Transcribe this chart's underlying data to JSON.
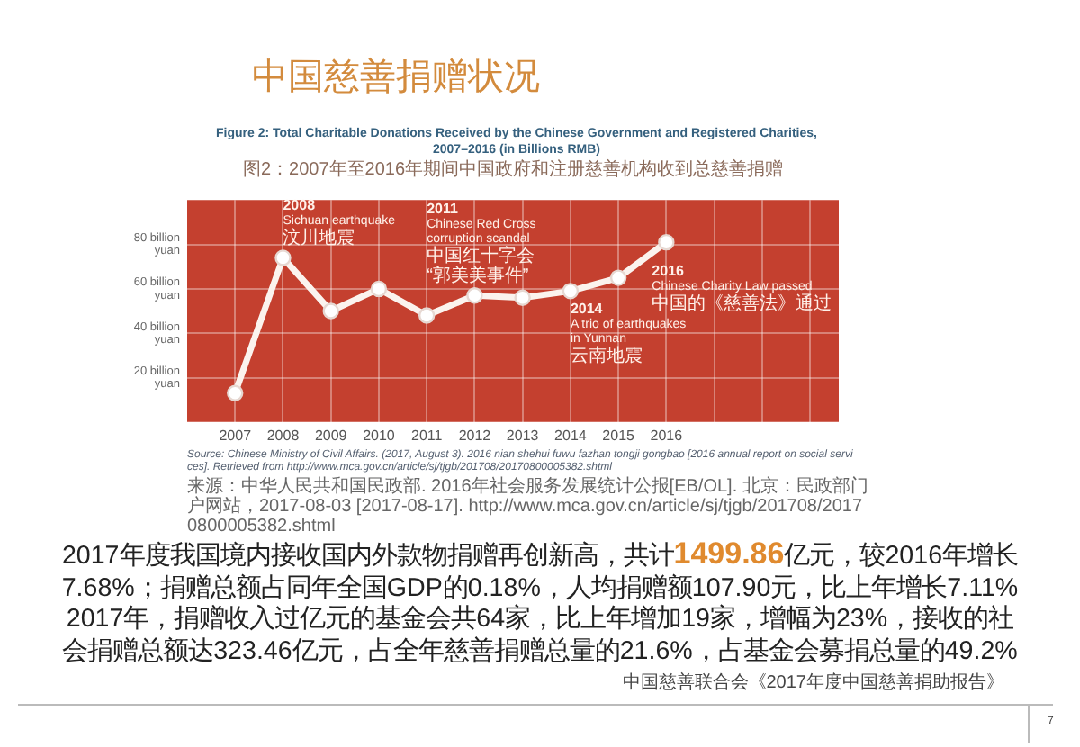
{
  "chart_data": {
    "type": "line",
    "title": "Figure 2: Total Charitable Donations Received by the Chinese Government and Registered Charities, 2007–2016 (in Billions RMB)",
    "subtitle": "图2：2007年至2016年期间中国政府和注册慈善机构收到总慈善捐赠",
    "x": [
      2007,
      2008,
      2009,
      2010,
      2011,
      2012,
      2013,
      2014,
      2015,
      2016
    ],
    "series": [
      {
        "color": "#fbf3ee",
        "values": [
          13,
          74,
          50,
          60,
          48,
          57,
          56,
          59,
          65,
          81
        ]
      }
    ],
    "xlim": [
      2006,
      2019.6
    ],
    "xticks": [
      2007,
      2008,
      2009,
      2010,
      2011,
      2012,
      2013,
      2014,
      2015,
      2016,
      {
        "value": 2017,
        "label": null
      },
      {
        "value": 2018,
        "label": null
      },
      {
        "value": 2019,
        "label": null
      }
    ],
    "ylim": [
      0,
      100
    ],
    "yticks": [
      {
        "value": 20,
        "label": "20 billion yuan"
      },
      {
        "value": 40,
        "label": "40 billion yuan"
      },
      {
        "value": 60,
        "label": "60 billion yuan"
      },
      {
        "value": 80,
        "label": "80 billion yuan"
      }
    ],
    "grid": true,
    "legend": false,
    "marker": "circle",
    "line_style": "solid",
    "annotations": [
      "中国慈善捐赠状况",
      "Source: Chinese Ministry of Civil Affairs. (2017, August 3). 2016 nian shehui fuwu fazhan tongji gongbao [2016 annual report on social services]. Retrieved from http://www.mca.gov.cn/article/sj/tjgb/201708/20170800005382.shtml",
      "来源：中华人民共和国民政部. 2016年社会服务发展统计公报[EB/OL]. 北京：民政部门户网站，2017-08-03 [2017-08-17]. http://www.mca.gov.cn/article/sj/tjgb/201708/20170800005382.shtml",
      "2017年度我国境内接收国内外款物捐赠再创新高，共计",
      "1499.86",
      "亿元，较2016年增长",
      "7.68%；捐赠总额占同年全国GDP的0.18%，人均捐赠额107.90元，比上年增长7.11%",
      "2017年，捐赠收入过亿元的基金会共64家，比上年增加19家，增幅为23%，接收的社",
      "会捐赠总额达323.46亿元，占全年慈善捐赠总量的21.6%，占基金会募捐总量的49.2%",
      "中国慈善联合会《2017年度中国慈善捐助报告》",
      "7",
      {
        "text": "2008\nSichuan earthquake\n汶川地震",
        "x": 2008,
        "y": 74
      },
      {
        "text": "2011\nChinese Red Cross\ncorruption scandal\n中国红十字会\n“郭美美事件”",
        "x": 2011,
        "y": 48
      },
      {
        "text": "2014\nA trio of earthquakes\nin Yunnan\n云南地震",
        "x": 2014,
        "y": 59
      },
      {
        "text": "2016\nChinese Charity Law passed\n中国的《慈善法》通过",
        "x": 2016,
        "y": 81
      }
    ]
  }
}
